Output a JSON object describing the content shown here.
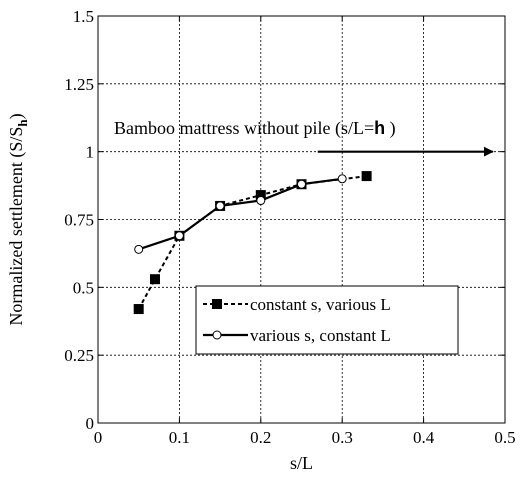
{
  "chart_data": {
    "type": "line",
    "title": "",
    "xlabel": "s/L",
    "ylabel": "Normalized settlement (S/S",
    "ylabel_subscript": "h",
    "ylabel_close": ")",
    "xlim": [
      0,
      0.5
    ],
    "ylim": [
      0,
      1.5
    ],
    "xticks": [
      0,
      0.1,
      0.2,
      0.3,
      0.4,
      0.5
    ],
    "xtick_labels": [
      "0",
      "0.1",
      "0.2",
      "0.3",
      "0.4",
      "0.5"
    ],
    "yticks": [
      0,
      0.25,
      0.5,
      0.75,
      1,
      1.25,
      1.5
    ],
    "ytick_labels": [
      "0",
      "0.25",
      "0.5",
      "0.75",
      "1",
      "1.25",
      "1.5"
    ],
    "grid": true,
    "legend_position": "lower-right",
    "series": [
      {
        "name": "constant s, various L",
        "marker": "filled-square",
        "line_style": "dashed",
        "color": "#000000",
        "x": [
          0.05,
          0.07,
          0.1,
          0.15,
          0.2,
          0.25,
          0.33
        ],
        "y": [
          0.42,
          0.53,
          0.69,
          0.8,
          0.84,
          0.88,
          0.91
        ]
      },
      {
        "name": "various s, constant L",
        "marker": "open-circle",
        "line_style": "solid",
        "color": "#000000",
        "x": [
          0.05,
          0.1,
          0.15,
          0.2,
          0.25,
          0.3
        ],
        "y": [
          0.64,
          0.69,
          0.8,
          0.82,
          0.88,
          0.9
        ]
      }
    ],
    "annotation": {
      "text_before": "Bamboo mattress without pile (s/L=",
      "text_bold": "h",
      "text_after": " )",
      "arrow_y": 1,
      "arrow_x_from": 0.27,
      "arrow_x_to": 0.485
    }
  }
}
